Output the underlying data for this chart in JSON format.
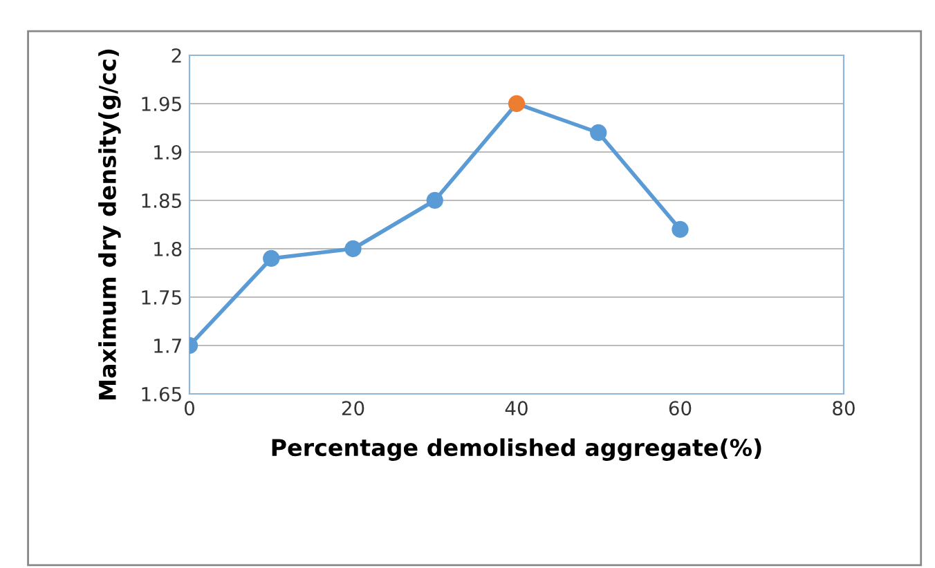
{
  "chart_data": {
    "type": "line",
    "xlabel": "Percentage demolished aggregate(%)",
    "ylabel": "Maximum dry density(g/cc)",
    "x": [
      0,
      10,
      20,
      30,
      40,
      50,
      60
    ],
    "series": [
      {
        "color": "#5b9bd5",
        "colors": [
          "#5b9bd5",
          "#5b9bd5",
          "#5b9bd5",
          "#5b9bd5",
          "#ed7d31",
          "#5b9bd5",
          "#5b9bd5"
        ],
        "values": [
          1.7,
          1.79,
          1.8,
          1.85,
          1.95,
          1.92,
          1.82
        ]
      }
    ],
    "xlim": [
      0,
      80
    ],
    "xticks": [
      0,
      20,
      40,
      60,
      80
    ],
    "ylim": [
      1.65,
      2
    ],
    "yticks": [
      1.65,
      1.7,
      1.75,
      1.8,
      1.85,
      1.9,
      1.95,
      2
    ],
    "grid": "y",
    "marker": "circle",
    "line_style": "solid"
  }
}
